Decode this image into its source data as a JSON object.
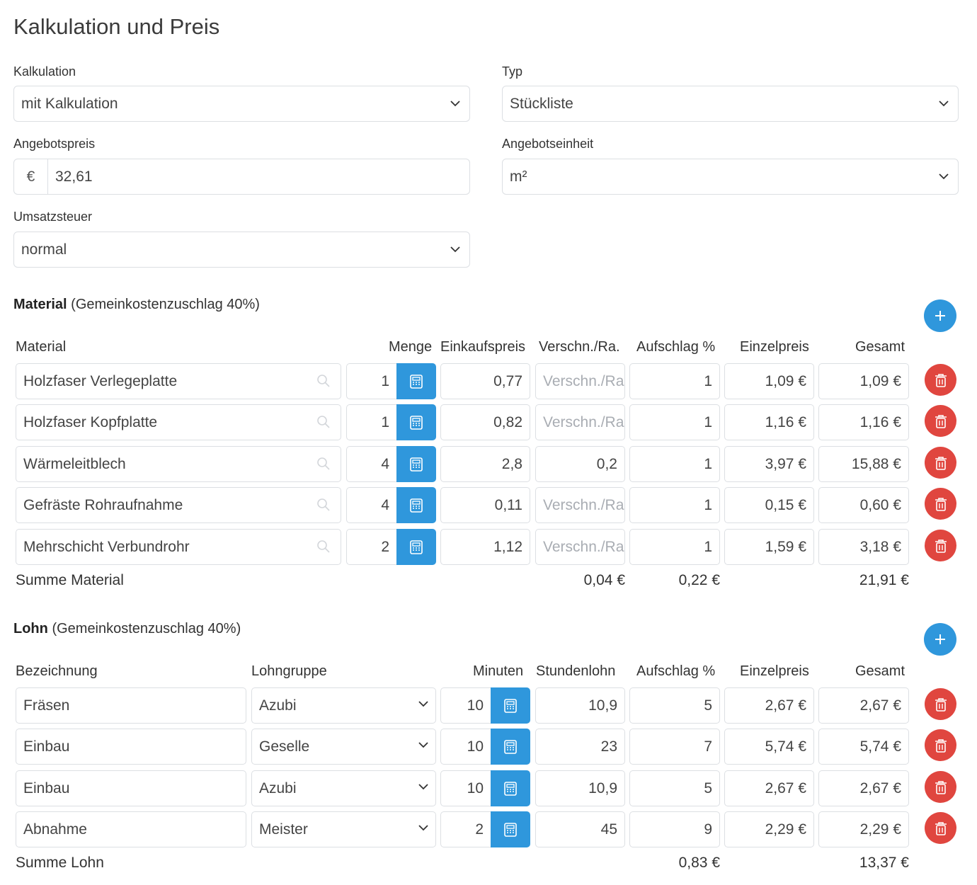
{
  "title": "Kalkulation und Preis",
  "form": {
    "kalkulation_label": "Kalkulation",
    "kalkulation_value": "mit Kalkulation",
    "typ_label": "Typ",
    "typ_value": "Stückliste",
    "angebotspreis_label": "Angebotspreis",
    "currency_symbol": "€",
    "angebotspreis_value": "32,61",
    "angebotseinheit_label": "Angebotseinheit",
    "angebotseinheit_value": "m²",
    "umsatzsteuer_label": "Umsatzsteuer",
    "umsatzsteuer_value": "normal"
  },
  "material": {
    "heading": "Material",
    "heading_suffix": "(Gemeinkostenzuschlag 40%)",
    "columns": {
      "material": "Material",
      "menge": "Menge",
      "einkaufspreis": "Einkaufspreis",
      "verschnitt": "Verschn./Ra.",
      "aufschlag": "Aufschlag %",
      "einzelpreis": "Einzelpreis",
      "gesamt": "Gesamt"
    },
    "verschnitt_placeholder": "Verschn./Ra.",
    "rows": [
      {
        "name": "Holzfaser Verlegeplatte",
        "menge": "1",
        "einkaufspreis": "0,77",
        "verschnitt": "",
        "aufschlag": "1",
        "einzelpreis": "1,09 €",
        "gesamt": "1,09 €"
      },
      {
        "name": "Holzfaser Kopfplatte",
        "menge": "1",
        "einkaufspreis": "0,82",
        "verschnitt": "",
        "aufschlag": "1",
        "einzelpreis": "1,16 €",
        "gesamt": "1,16 €"
      },
      {
        "name": "Wärmeleitblech",
        "menge": "4",
        "einkaufspreis": "2,8",
        "verschnitt": "0,2",
        "aufschlag": "1",
        "einzelpreis": "3,97 €",
        "gesamt": "15,88 €"
      },
      {
        "name": "Gefräste Rohraufnahme",
        "menge": "4",
        "einkaufspreis": "0,11",
        "verschnitt": "",
        "aufschlag": "1",
        "einzelpreis": "0,15 €",
        "gesamt": "0,60 €"
      },
      {
        "name": "Mehrschicht Verbundrohr",
        "menge": "2",
        "einkaufspreis": "1,12",
        "verschnitt": "",
        "aufschlag": "1",
        "einzelpreis": "1,59 €",
        "gesamt": "3,18 €"
      }
    ],
    "summe_label": "Summe Material",
    "summe_verschnitt": "0,04 €",
    "summe_aufschlag": "0,22 €",
    "summe_gesamt": "21,91 €"
  },
  "lohn": {
    "heading": "Lohn",
    "heading_suffix": "(Gemeinkostenzuschlag 40%)",
    "columns": {
      "bezeichnung": "Bezeichnung",
      "lohngruppe": "Lohngruppe",
      "minuten": "Minuten",
      "stundenlohn": "Stundenlohn",
      "aufschlag": "Aufschlag %",
      "einzelpreis": "Einzelpreis",
      "gesamt": "Gesamt"
    },
    "rows": [
      {
        "bezeichnung": "Fräsen",
        "lohngruppe": "Azubi",
        "minuten": "10",
        "stundenlohn": "10,9",
        "aufschlag": "5",
        "einzelpreis": "2,67 €",
        "gesamt": "2,67 €"
      },
      {
        "bezeichnung": "Einbau",
        "lohngruppe": "Geselle",
        "minuten": "10",
        "stundenlohn": "23",
        "aufschlag": "7",
        "einzelpreis": "5,74 €",
        "gesamt": "5,74 €"
      },
      {
        "bezeichnung": "Einbau",
        "lohngruppe": "Azubi",
        "minuten": "10",
        "stundenlohn": "10,9",
        "aufschlag": "5",
        "einzelpreis": "2,67 €",
        "gesamt": "2,67 €"
      },
      {
        "bezeichnung": "Abnahme",
        "lohngruppe": "Meister",
        "minuten": "2",
        "stundenlohn": "45",
        "aufschlag": "9",
        "einzelpreis": "2,29 €",
        "gesamt": "2,29 €"
      }
    ],
    "summe_label": "Summe Lohn",
    "summe_aufschlag": "0,83 €",
    "summe_gesamt": "13,37 €"
  },
  "colors": {
    "primary": "#2f97dc",
    "danger": "#e0463f",
    "border": "#dcdfe3",
    "placeholder": "#a9adb3"
  },
  "icons": {
    "select": "chevron-down-icon",
    "search": "search-icon",
    "calculator": "calculator-icon",
    "delete": "trash-icon",
    "add": "plus-icon"
  }
}
